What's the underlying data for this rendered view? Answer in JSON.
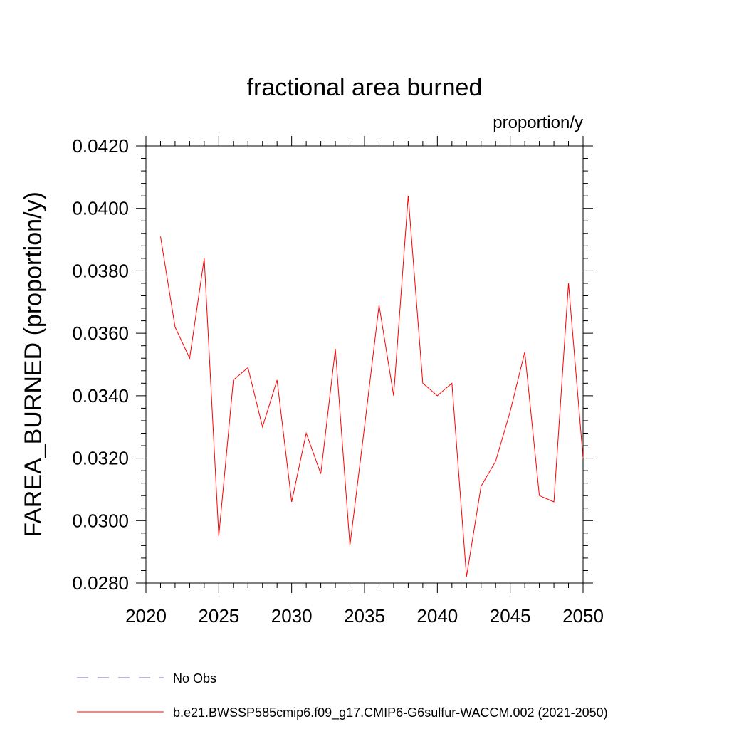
{
  "chart_data": {
    "type": "line",
    "title": "fractional area burned",
    "units_label": "proportion/y",
    "ylabel": "FAREA_BURNED  (proportion/y)",
    "xlabel": "",
    "xlim": [
      2020,
      2050
    ],
    "ylim": [
      0.028,
      0.042
    ],
    "x_ticks": [
      2020,
      2025,
      2030,
      2035,
      2040,
      2045,
      2050
    ],
    "x_tick_labels": [
      "2020",
      "2025",
      "2030",
      "2035",
      "2040",
      "2045",
      "2050"
    ],
    "y_ticks": [
      0.028,
      0.03,
      0.032,
      0.034,
      0.036,
      0.038,
      0.04,
      0.042
    ],
    "y_tick_labels": [
      "0.0280",
      "0.0300",
      "0.0320",
      "0.0340",
      "0.0360",
      "0.0380",
      "0.0400",
      "0.0420"
    ],
    "x_minor_step": 1,
    "y_minor_step": 0.0004,
    "grid": false,
    "legend_position": "bottom",
    "series": [
      {
        "name": "b.e21.BWSSP585cmip6.f09_g17.CMIP6-G6sulfur-WACCM.002 (2021-2050)",
        "color": "#ff0000",
        "x": [
          2021,
          2022,
          2023,
          2024,
          2025,
          2026,
          2027,
          2028,
          2029,
          2030,
          2031,
          2032,
          2033,
          2034,
          2035,
          2036,
          2037,
          2038,
          2039,
          2040,
          2041,
          2042,
          2043,
          2044,
          2045,
          2046,
          2047,
          2048,
          2049,
          2050
        ],
        "y": [
          0.0391,
          0.0362,
          0.0352,
          0.0384,
          0.0295,
          0.0345,
          0.0349,
          0.033,
          0.0345,
          0.0306,
          0.0328,
          0.0315,
          0.0355,
          0.0292,
          0.033,
          0.0369,
          0.034,
          0.0404,
          0.0344,
          0.034,
          0.0344,
          0.0282,
          0.0311,
          0.0319,
          0.0335,
          0.0354,
          0.0308,
          0.0306,
          0.0376,
          0.032
        ]
      }
    ],
    "legend": [
      {
        "label": "No Obs",
        "color": "#7b6bb0",
        "dash": true
      },
      {
        "label": "b.e21.BWSSP585cmip6.f09_g17.CMIP6-G6sulfur-WACCM.002 (2021-2050)",
        "color": "#ff0000",
        "dash": false
      }
    ]
  }
}
